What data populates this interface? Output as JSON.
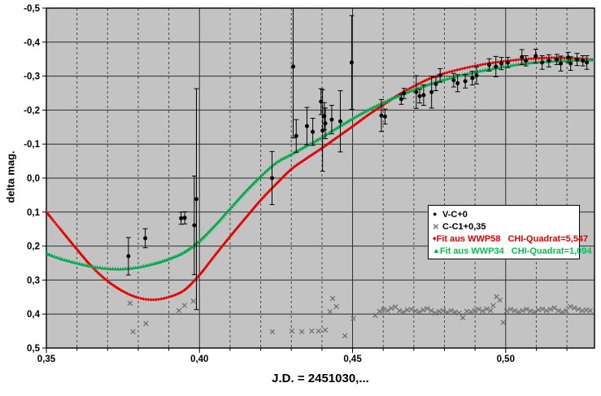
{
  "chart_data": {
    "type": "scatter",
    "title": "",
    "xlabel": "J.D. = 2451030,...",
    "ylabel": "delta mag.",
    "xlim": [
      0.35,
      0.529
    ],
    "ylim": [
      -0.5,
      0.5
    ],
    "y_axis_inverted_note": "negative magnitudes at top",
    "grid": {
      "x_minor_step": 0.01,
      "x_major_solid": true,
      "y_major_solid": true
    },
    "plot_bg_color": "#c3c3c3",
    "x_ticks": [
      {
        "v": 0.35,
        "label": "0,35"
      },
      {
        "v": 0.4,
        "label": "0,40"
      },
      {
        "v": 0.45,
        "label": "0,45"
      },
      {
        "v": 0.5,
        "label": "0,50"
      }
    ],
    "y_ticks": [
      {
        "v": -0.5,
        "label": "-0,5"
      },
      {
        "v": -0.4,
        "label": "-0,4"
      },
      {
        "v": -0.3,
        "label": "-0,3"
      },
      {
        "v": -0.2,
        "label": "-0,2"
      },
      {
        "v": -0.1,
        "label": "-0,1"
      },
      {
        "v": 0.0,
        "label": "0,0"
      },
      {
        "v": 0.1,
        "label": "0,1"
      },
      {
        "v": 0.2,
        "label": "0,2"
      },
      {
        "v": 0.3,
        "label": "0,3"
      },
      {
        "v": 0.4,
        "label": "0,4"
      },
      {
        "v": 0.5,
        "label": "0,5"
      }
    ],
    "legend_position": "middle-right",
    "series": [
      {
        "name": "V-C+0",
        "marker": "circle",
        "color": "#000000",
        "text_color": "#000000",
        "points_xye": [
          [
            0.3768,
            0.23,
            0.055
          ],
          [
            0.3823,
            0.177,
            0.028
          ],
          [
            0.394,
            0.118,
            0.018
          ],
          [
            0.3952,
            0.117,
            0.018
          ],
          [
            0.3983,
            0.139,
            0.145
          ],
          [
            0.399,
            0.062,
            0.325
          ],
          [
            0.4237,
            0.0,
            0.078
          ],
          [
            0.4306,
            -0.328,
            0.21
          ],
          [
            0.4316,
            -0.124,
            0.048
          ],
          [
            0.4351,
            -0.153,
            0.055
          ],
          [
            0.437,
            -0.136,
            0.04
          ],
          [
            0.4397,
            -0.225,
            0.038
          ],
          [
            0.4402,
            -0.14,
            0.12
          ],
          [
            0.4408,
            -0.182,
            0.04
          ],
          [
            0.4411,
            -0.161,
            0.045
          ],
          [
            0.4432,
            -0.172,
            0.042
          ],
          [
            0.446,
            -0.167,
            0.09
          ],
          [
            0.4497,
            -0.34,
            0.138
          ],
          [
            0.4594,
            -0.184,
            0.047
          ],
          [
            0.4606,
            -0.181,
            0.022
          ],
          [
            0.4659,
            -0.232,
            0.015
          ],
          [
            0.4668,
            -0.249,
            0.015
          ],
          [
            0.4708,
            -0.253,
            0.048
          ],
          [
            0.4719,
            -0.241,
            0.02
          ],
          [
            0.4732,
            -0.244,
            0.03
          ],
          [
            0.4758,
            -0.253,
            0.047
          ],
          [
            0.4772,
            -0.277,
            0.02
          ],
          [
            0.4786,
            -0.302,
            0.02
          ],
          [
            0.483,
            -0.288,
            0.02
          ],
          [
            0.4843,
            -0.279,
            0.025
          ],
          [
            0.4868,
            -0.285,
            0.02
          ],
          [
            0.4891,
            -0.294,
            0.02
          ],
          [
            0.4905,
            -0.302,
            0.025
          ],
          [
            0.4946,
            -0.333,
            0.018
          ],
          [
            0.4968,
            -0.328,
            0.03
          ],
          [
            0.4986,
            -0.337,
            0.018
          ],
          [
            0.5007,
            -0.34,
            0.015
          ],
          [
            0.5053,
            -0.356,
            0.022
          ],
          [
            0.5066,
            -0.345,
            0.015
          ],
          [
            0.5098,
            -0.359,
            0.02
          ],
          [
            0.5119,
            -0.34,
            0.02
          ],
          [
            0.5141,
            -0.345,
            0.018
          ],
          [
            0.5167,
            -0.349,
            0.015
          ],
          [
            0.518,
            -0.337,
            0.022
          ],
          [
            0.5204,
            -0.355,
            0.015
          ],
          [
            0.5212,
            -0.337,
            0.02
          ],
          [
            0.5233,
            -0.349,
            0.018
          ],
          [
            0.5252,
            -0.345,
            0.015
          ],
          [
            0.5265,
            -0.34,
            0.02
          ]
        ]
      },
      {
        "name": "C-C1+0,35",
        "marker": "x",
        "color": "#6f6f6f",
        "text_color": "#000000",
        "points_xy": [
          [
            0.3773,
            0.368
          ],
          [
            0.3783,
            0.452
          ],
          [
            0.3825,
            0.428
          ],
          [
            0.3933,
            0.39
          ],
          [
            0.3951,
            0.375
          ],
          [
            0.398,
            0.362
          ],
          [
            0.4238,
            0.452
          ],
          [
            0.4302,
            0.45
          ],
          [
            0.4334,
            0.452
          ],
          [
            0.4367,
            0.45
          ],
          [
            0.4389,
            0.45
          ],
          [
            0.4411,
            0.447
          ],
          [
            0.4426,
            0.393
          ],
          [
            0.4435,
            0.354
          ],
          [
            0.4447,
            0.378
          ],
          [
            0.4475,
            0.464
          ],
          [
            0.4502,
            0.413
          ],
          [
            0.4574,
            0.404
          ],
          [
            0.4588,
            0.392
          ],
          [
            0.4601,
            0.386
          ],
          [
            0.4614,
            0.39
          ],
          [
            0.4627,
            0.383
          ],
          [
            0.464,
            0.379
          ],
          [
            0.4653,
            0.39
          ],
          [
            0.4666,
            0.394
          ],
          [
            0.4679,
            0.388
          ],
          [
            0.4692,
            0.386
          ],
          [
            0.4705,
            0.391
          ],
          [
            0.4718,
            0.394
          ],
          [
            0.4731,
            0.388
          ],
          [
            0.4744,
            0.384
          ],
          [
            0.4757,
            0.39
          ],
          [
            0.477,
            0.397
          ],
          [
            0.4783,
            0.392
          ],
          [
            0.4796,
            0.39
          ],
          [
            0.4809,
            0.395
          ],
          [
            0.4822,
            0.39
          ],
          [
            0.4835,
            0.394
          ],
          [
            0.4848,
            0.397
          ],
          [
            0.486,
            0.411
          ],
          [
            0.4873,
            0.392
          ],
          [
            0.4886,
            0.394
          ],
          [
            0.4899,
            0.39
          ],
          [
            0.4912,
            0.386
          ],
          [
            0.4925,
            0.391
          ],
          [
            0.4938,
            0.385
          ],
          [
            0.4951,
            0.39
          ],
          [
            0.4959,
            0.375
          ],
          [
            0.497,
            0.349
          ],
          [
            0.4981,
            0.359
          ],
          [
            0.4992,
            0.425
          ],
          [
            0.5003,
            0.391
          ],
          [
            0.5016,
            0.386
          ],
          [
            0.5029,
            0.39
          ],
          [
            0.5042,
            0.394
          ],
          [
            0.5055,
            0.39
          ],
          [
            0.5068,
            0.386
          ],
          [
            0.5081,
            0.391
          ],
          [
            0.5094,
            0.394
          ],
          [
            0.5107,
            0.388
          ],
          [
            0.512,
            0.385
          ],
          [
            0.5133,
            0.39
          ],
          [
            0.5146,
            0.386
          ],
          [
            0.5159,
            0.382
          ],
          [
            0.5172,
            0.39
          ],
          [
            0.5185,
            0.394
          ],
          [
            0.5198,
            0.39
          ],
          [
            0.5211,
            0.378
          ],
          [
            0.5224,
            0.382
          ],
          [
            0.5237,
            0.386
          ],
          [
            0.525,
            0.39
          ],
          [
            0.5263,
            0.388
          ],
          [
            0.5276,
            0.39
          ]
        ]
      },
      {
        "name": "Fit aus WWP58",
        "chi": "CHI-Quadrat=5,547",
        "marker": "diamond",
        "color": "#e60000",
        "text_color": "#dd0000",
        "curve_xy": [
          [
            0.35,
            0.1
          ],
          [
            0.355,
            0.155
          ],
          [
            0.36,
            0.21
          ],
          [
            0.365,
            0.262
          ],
          [
            0.37,
            0.303
          ],
          [
            0.375,
            0.333
          ],
          [
            0.38,
            0.352
          ],
          [
            0.385,
            0.358
          ],
          [
            0.39,
            0.35
          ],
          [
            0.395,
            0.33
          ],
          [
            0.4,
            0.285
          ],
          [
            0.405,
            0.228
          ],
          [
            0.41,
            0.172
          ],
          [
            0.415,
            0.118
          ],
          [
            0.42,
            0.065
          ],
          [
            0.425,
            0.018
          ],
          [
            0.43,
            -0.026
          ],
          [
            0.435,
            -0.058
          ],
          [
            0.44,
            -0.088
          ],
          [
            0.445,
            -0.12
          ],
          [
            0.45,
            -0.152
          ],
          [
            0.455,
            -0.185
          ],
          [
            0.46,
            -0.215
          ],
          [
            0.465,
            -0.245
          ],
          [
            0.47,
            -0.27
          ],
          [
            0.475,
            -0.292
          ],
          [
            0.48,
            -0.308
          ],
          [
            0.485,
            -0.32
          ],
          [
            0.49,
            -0.33
          ],
          [
            0.495,
            -0.338
          ],
          [
            0.5,
            -0.344
          ],
          [
            0.505,
            -0.349
          ],
          [
            0.51,
            -0.352
          ],
          [
            0.515,
            -0.354
          ],
          [
            0.52,
            -0.353
          ],
          [
            0.525,
            -0.351
          ],
          [
            0.529,
            -0.348
          ]
        ]
      },
      {
        "name": "Fit aus WWP34",
        "chi": "CHI-Quadrat=1,094",
        "marker": "triangle",
        "color": "#00a94d",
        "text_color": "#00c24e",
        "curve_xy": [
          [
            0.35,
            0.222
          ],
          [
            0.355,
            0.238
          ],
          [
            0.36,
            0.25
          ],
          [
            0.365,
            0.26
          ],
          [
            0.37,
            0.266
          ],
          [
            0.375,
            0.267
          ],
          [
            0.38,
            0.262
          ],
          [
            0.385,
            0.252
          ],
          [
            0.39,
            0.238
          ],
          [
            0.395,
            0.218
          ],
          [
            0.4,
            0.185
          ],
          [
            0.405,
            0.14
          ],
          [
            0.41,
            0.09
          ],
          [
            0.415,
            0.04
          ],
          [
            0.42,
            -0.005
          ],
          [
            0.425,
            -0.045
          ],
          [
            0.43,
            -0.07
          ],
          [
            0.435,
            -0.095
          ],
          [
            0.44,
            -0.12
          ],
          [
            0.445,
            -0.148
          ],
          [
            0.45,
            -0.175
          ],
          [
            0.455,
            -0.2
          ],
          [
            0.46,
            -0.222
          ],
          [
            0.465,
            -0.242
          ],
          [
            0.47,
            -0.26
          ],
          [
            0.475,
            -0.276
          ],
          [
            0.48,
            -0.29
          ],
          [
            0.485,
            -0.302
          ],
          [
            0.49,
            -0.312
          ],
          [
            0.495,
            -0.321
          ],
          [
            0.5,
            -0.329
          ],
          [
            0.505,
            -0.336
          ],
          [
            0.51,
            -0.341
          ],
          [
            0.515,
            -0.344
          ],
          [
            0.52,
            -0.346
          ],
          [
            0.525,
            -0.347
          ],
          [
            0.529,
            -0.348
          ]
        ]
      }
    ]
  }
}
